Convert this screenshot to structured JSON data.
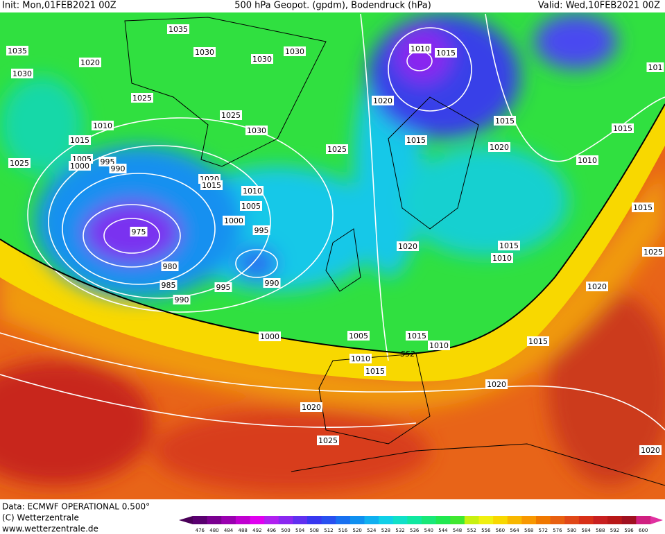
{
  "header": {
    "init": "Init: Mon,01FEB2021 00Z",
    "title": "500 hPa Geopot. (gpdm), Bodendruck (hPa)",
    "valid": "Valid: Wed,10FEB2021 00Z"
  },
  "isobar_labels": [
    "1035",
    "1035",
    "1030",
    "1030",
    "1030",
    "1020",
    "1030",
    "1010",
    "1015",
    "101",
    "1025",
    "1020",
    "1025",
    "1030",
    "1015",
    "1010",
    "1015",
    "1015",
    "1015",
    "1025",
    "1020",
    "1005",
    "995",
    "1000",
    "990",
    "1025",
    "1010",
    "1020",
    "1015",
    "1010",
    "1015",
    "1005",
    "1000",
    "995",
    "975",
    "1020",
    "1015",
    "1025",
    "1010",
    "980",
    "990",
    "985",
    "995",
    "1020",
    "990",
    "1000",
    "1005",
    "1015",
    "1015",
    "1010",
    "552",
    "1010",
    "1015",
    "1020",
    "1020",
    "1025",
    "1020"
  ],
  "footer": {
    "data": "Data: ECMWF OPERATIONAL 0.500°",
    "copyright": "(C) Wetterzentrale",
    "url": "www.wetterzentrale.de"
  },
  "colorbar": {
    "labels": [
      476,
      480,
      484,
      488,
      492,
      496,
      500,
      504,
      508,
      512,
      516,
      520,
      524,
      528,
      532,
      536,
      540,
      544,
      548,
      552,
      556,
      560,
      564,
      568,
      572,
      576,
      580,
      584,
      588,
      592,
      596,
      600
    ],
    "colors": [
      "#5a0070",
      "#7a0090",
      "#9a00b0",
      "#c000d0",
      "#e000f0",
      "#b020f0",
      "#8a28f0",
      "#6030f0",
      "#3838f0",
      "#2850f0",
      "#1870f0",
      "#1090f0",
      "#10b0f0",
      "#10d0e8",
      "#10e0c8",
      "#10e8a0",
      "#18e878",
      "#20e850",
      "#40e830",
      "#c8f010",
      "#f0f010",
      "#f8d800",
      "#f8b800",
      "#f89800",
      "#f07800",
      "#e86010",
      "#e04818",
      "#d83018",
      "#c82020",
      "#b81818",
      "#a01020",
      "#d02080"
    ]
  }
}
